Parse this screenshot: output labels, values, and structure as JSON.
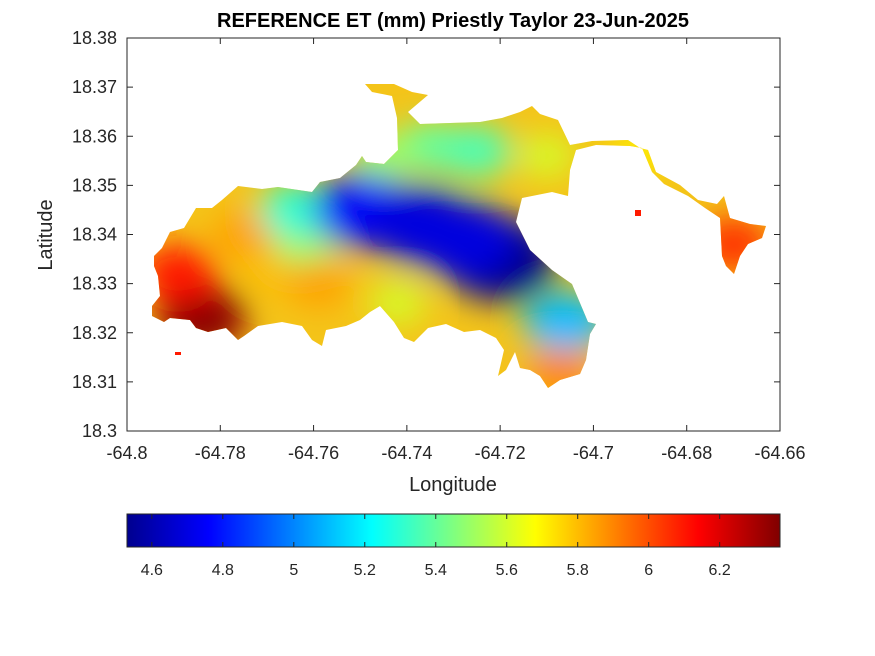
{
  "title": "REFERENCE ET (mm) Priestly Taylor 23-Jun-2025",
  "map": {
    "xlabel": "Longitude",
    "ylabel": "Latitude",
    "xlim": [
      -64.8,
      -64.66
    ],
    "ylim": [
      18.3,
      18.38
    ],
    "xticks": [
      -64.8,
      -64.78,
      -64.76,
      -64.74,
      -64.72,
      -64.7,
      -64.68,
      -64.66
    ],
    "yticks": [
      18.3,
      18.31,
      18.32,
      18.33,
      18.34,
      18.35,
      18.36,
      18.37,
      18.38
    ],
    "xtick_labels": [
      "-64.8",
      "-64.78",
      "-64.76",
      "-64.74",
      "-64.72",
      "-64.7",
      "-64.68",
      "-64.66"
    ],
    "ytick_labels": [
      "18.3",
      "18.31",
      "18.32",
      "18.33",
      "18.34",
      "18.35",
      "18.36",
      "18.37",
      "18.38"
    ],
    "region": "St. Thomas island (filled contour of reference evapotranspiration)"
  },
  "colorbar": {
    "colormap": "jet",
    "range": [
      4.53,
      6.37
    ],
    "ticks": [
      4.6,
      4.8,
      5.0,
      5.2,
      5.4,
      5.6,
      5.8,
      6.0,
      6.2
    ],
    "tick_labels": [
      "4.6",
      "4.8",
      "5",
      "5.2",
      "5.4",
      "5.6",
      "5.8",
      "6",
      "6.2"
    ]
  },
  "chart_data": {
    "type": "heatmap",
    "title": "REFERENCE ET (mm) Priestly Taylor 23-Jun-2025",
    "xlabel": "Longitude",
    "ylabel": "Latitude",
    "xlim": [
      -64.8,
      -64.66
    ],
    "ylim": [
      18.3,
      18.38
    ],
    "value_range": [
      4.53,
      6.37
    ],
    "hotspots": [
      {
        "lon": -64.784,
        "lat": 18.323,
        "value": 6.35
      },
      {
        "lon": -64.789,
        "lat": 18.332,
        "value": 6.1
      },
      {
        "lon": -64.775,
        "lat": 18.34,
        "value": 5.85
      },
      {
        "lon": -64.768,
        "lat": 18.333,
        "value": 5.8
      },
      {
        "lon": -64.762,
        "lat": 18.338,
        "value": 5.5
      },
      {
        "lon": -64.759,
        "lat": 18.33,
        "value": 5.85
      },
      {
        "lon": -64.764,
        "lat": 18.345,
        "value": 5.3
      },
      {
        "lon": -64.749,
        "lat": 18.345,
        "value": 4.75
      },
      {
        "lon": -64.737,
        "lat": 18.342,
        "value": 4.7
      },
      {
        "lon": -64.72,
        "lat": 18.335,
        "value": 4.55
      },
      {
        "lon": -64.728,
        "lat": 18.339,
        "value": 4.7
      },
      {
        "lon": -64.706,
        "lat": 18.322,
        "value": 5.1
      },
      {
        "lon": -64.742,
        "lat": 18.326,
        "value": 5.6
      },
      {
        "lon": -64.735,
        "lat": 18.358,
        "value": 5.4
      },
      {
        "lon": -64.745,
        "lat": 18.356,
        "value": 5.5
      },
      {
        "lon": -64.725,
        "lat": 18.357,
        "value": 5.35
      },
      {
        "lon": -64.707,
        "lat": 18.312,
        "value": 5.9
      },
      {
        "lon": -64.71,
        "lat": 18.356,
        "value": 5.6
      },
      {
        "lon": -64.69,
        "lat": 18.357,
        "value": 5.7
      },
      {
        "lon": -64.67,
        "lat": 18.338,
        "value": 6.05
      }
    ]
  }
}
